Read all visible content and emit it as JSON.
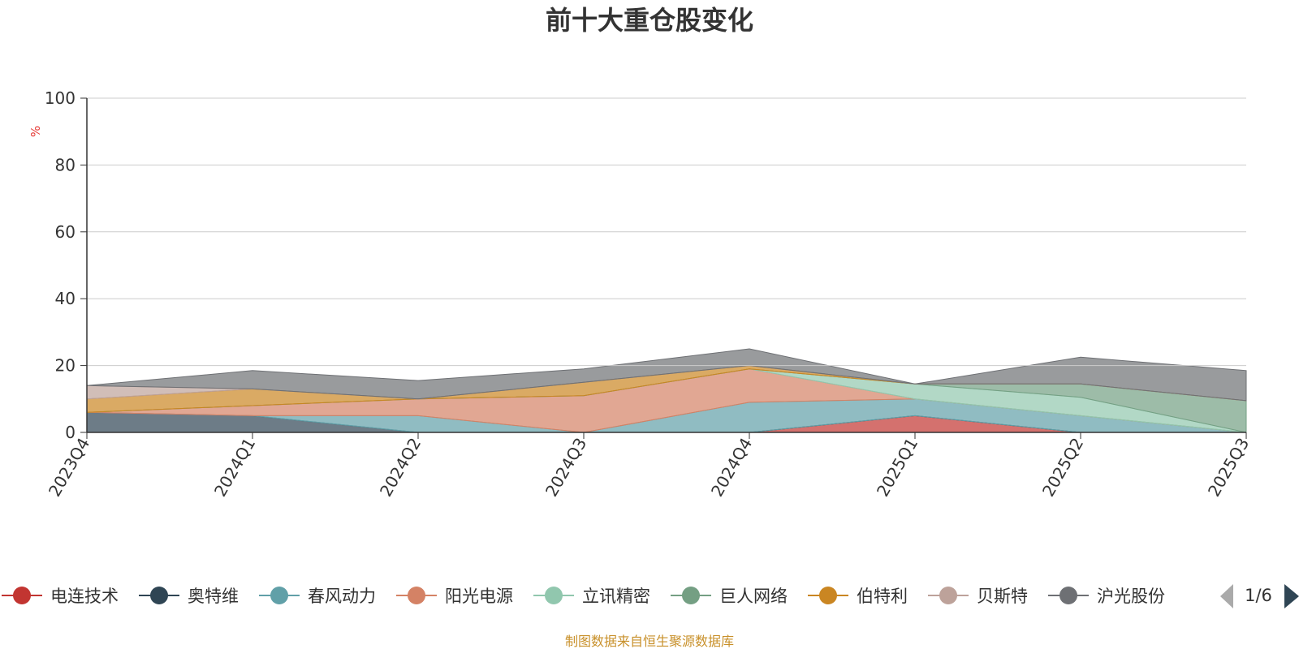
{
  "chart_data": {
    "type": "area",
    "stacked": true,
    "title": "前十大重仓股变化",
    "ylabel": "%",
    "ylim": [
      0,
      100
    ],
    "yticks": [
      "0",
      "20",
      "40",
      "60",
      "80",
      "100"
    ],
    "categories": [
      "2023Q4",
      "2024Q1",
      "2024Q2",
      "2024Q3",
      "2024Q4",
      "2025Q1",
      "2025Q2",
      "2025Q3"
    ],
    "series": [
      {
        "name": "电连技术",
        "color": "#c23531",
        "values": [
          0,
          0,
          0,
          0,
          0,
          5,
          0,
          0
        ]
      },
      {
        "name": "奥特维",
        "color": "#2f4554",
        "values": [
          6,
          5,
          0,
          0,
          0,
          0,
          0,
          0
        ]
      },
      {
        "name": "春风动力",
        "color": "#61a0a8",
        "values": [
          0,
          0,
          5,
          0,
          9,
          5,
          5,
          0
        ]
      },
      {
        "name": "阳光电源",
        "color": "#d48265",
        "values": [
          0,
          3,
          5,
          11,
          10,
          0,
          0,
          0
        ]
      },
      {
        "name": "立讯精密",
        "color": "#91c7ae",
        "values": [
          0,
          0,
          0,
          0,
          0,
          4.5,
          5.5,
          0
        ]
      },
      {
        "name": "巨人网络",
        "color": "#749f83",
        "values": [
          0,
          0,
          0,
          0,
          0,
          0,
          4,
          9.5
        ]
      },
      {
        "name": "伯特利",
        "color": "#ca8622",
        "values": [
          4,
          5,
          0,
          4,
          1,
          0,
          0,
          0
        ]
      },
      {
        "name": "贝斯特",
        "color": "#bda29a",
        "values": [
          4,
          0,
          0,
          0,
          0,
          0,
          0,
          0
        ]
      },
      {
        "name": "沪光股份",
        "color": "#6e7074",
        "values": [
          0,
          5.5,
          5.5,
          4,
          5,
          0,
          8,
          9
        ]
      }
    ],
    "grid": true,
    "legend_position": "bottom",
    "legend_page": "1/6"
  },
  "source": "制图数据来自恒生聚源数据库"
}
